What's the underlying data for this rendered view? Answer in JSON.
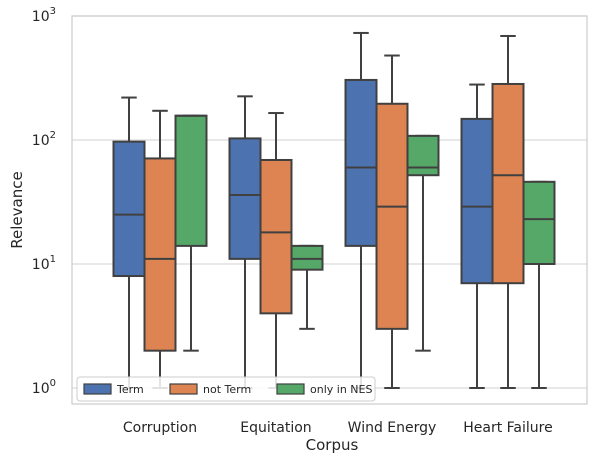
{
  "chart_data": {
    "type": "box",
    "xlabel": "Corpus",
    "ylabel": "Relevance",
    "yscale": "log",
    "ylim": [
      1,
      1000
    ],
    "yticks": [
      {
        "value": 1,
        "base": "10",
        "exp": "0"
      },
      {
        "value": 10,
        "base": "10",
        "exp": "1"
      },
      {
        "value": 100,
        "base": "10",
        "exp": "2"
      },
      {
        "value": 1000,
        "base": "10",
        "exp": "3"
      }
    ],
    "grid": "horizontal",
    "legend_position": "bottom-left",
    "categories": [
      "Corruption",
      "Equitation",
      "Wind Energy",
      "Heart Failure"
    ],
    "series": [
      {
        "name": "Term",
        "color": "#4c72b0",
        "boxes": [
          {
            "whisker_low": 1,
            "q1": 8,
            "median": 25,
            "q3": 97,
            "whisker_high": 220
          },
          {
            "whisker_low": 1,
            "q1": 11,
            "median": 36,
            "q3": 103,
            "whisker_high": 225
          },
          {
            "whisker_low": 1,
            "q1": 14,
            "median": 60,
            "q3": 305,
            "whisker_high": 730
          },
          {
            "whisker_low": 1,
            "q1": 7,
            "median": 29,
            "q3": 148,
            "whisker_high": 280
          }
        ]
      },
      {
        "name": "not Term",
        "color": "#dd8452",
        "boxes": [
          {
            "whisker_low": 1,
            "q1": 2,
            "median": 11,
            "q3": 71,
            "whisker_high": 172
          },
          {
            "whisker_low": 1,
            "q1": 4,
            "median": 18,
            "q3": 69,
            "whisker_high": 165
          },
          {
            "whisker_low": 1,
            "q1": 3,
            "median": 29,
            "q3": 196,
            "whisker_high": 480
          },
          {
            "whisker_low": 1,
            "q1": 7,
            "median": 52,
            "q3": 283,
            "whisker_high": 690
          }
        ]
      },
      {
        "name": "only in NES",
        "color": "#55a868",
        "boxes": [
          {
            "whisker_low": 2,
            "q1": 14,
            "median": 157,
            "q3": 157,
            "whisker_high": 157
          },
          {
            "whisker_low": 3,
            "q1": 9,
            "median": 11,
            "q3": 14,
            "whisker_high": 14
          },
          {
            "whisker_low": 2,
            "q1": 52,
            "median": 60,
            "q3": 108,
            "whisker_high": 108
          },
          {
            "whisker_low": 1,
            "q1": 10,
            "median": 23,
            "q3": 46,
            "whisker_high": 46
          }
        ]
      }
    ]
  }
}
